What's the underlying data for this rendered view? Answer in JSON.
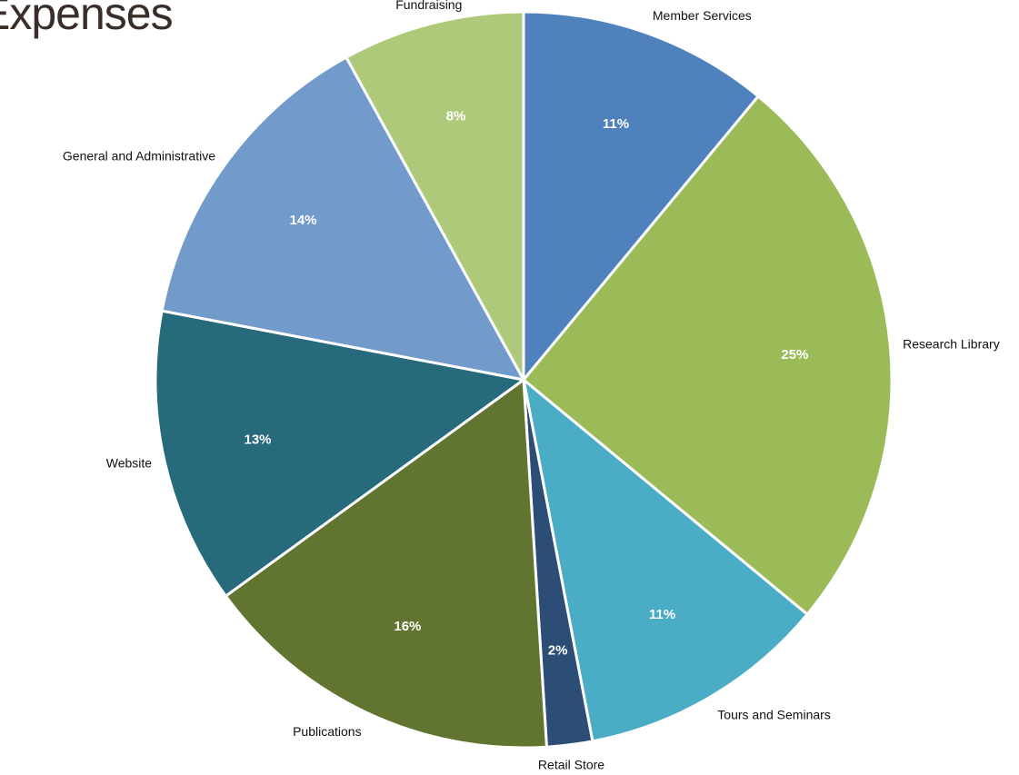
{
  "chart_data": {
    "type": "pie",
    "title": "Expenses",
    "start_angle_deg": 0,
    "direction": "clockwise",
    "slice_border_color": "#ffffff",
    "slices": [
      {
        "label": "Member Services",
        "value": 11,
        "display": "11%",
        "color": "#4f81bd"
      },
      {
        "label": "Research Library",
        "value": 25,
        "display": "25%",
        "color": "#9bbb59"
      },
      {
        "label": "Tours and Seminars",
        "value": 11,
        "display": "11%",
        "color": "#4bacc6"
      },
      {
        "label": "Retail Store",
        "value": 2,
        "display": "2%",
        "color": "#2c4d75"
      },
      {
        "label": "Publications",
        "value": 16,
        "display": "16%",
        "color": "#617530"
      },
      {
        "label": "Website",
        "value": 13,
        "display": "13%",
        "color": "#276a7c"
      },
      {
        "label": "General and Administrative",
        "value": 14,
        "display": "14%",
        "color": "#729aca"
      },
      {
        "label": "Fundraising",
        "value": 8,
        "display": "8%",
        "color": "#afc97a"
      }
    ]
  }
}
